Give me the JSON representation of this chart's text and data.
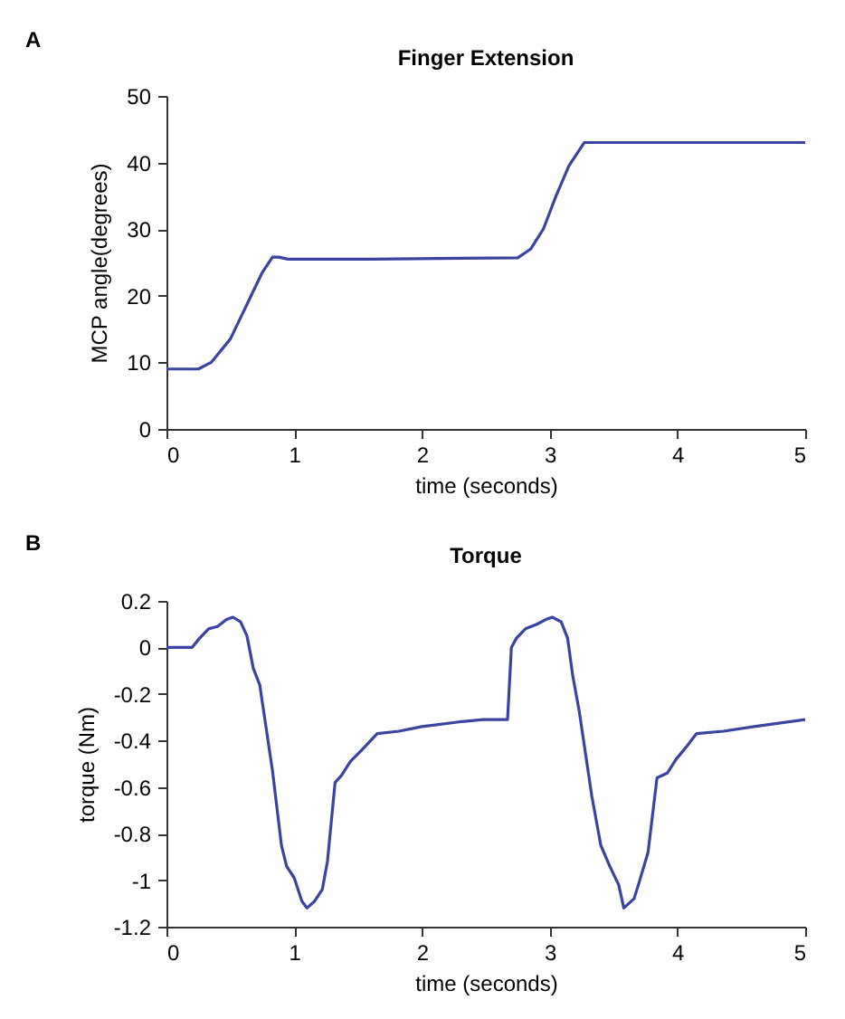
{
  "chart_data": [
    {
      "type": "line",
      "title": "Finger Extension",
      "xlabel": "time (seconds)",
      "ylabel": "MCP angle(degrees)",
      "annotations": [
        "A"
      ],
      "color": "#3a44a0",
      "x": [
        0,
        0.25,
        0.35,
        0.5,
        0.65,
        0.75,
        0.83,
        0.88,
        0.95,
        1.6,
        2.75,
        2.85,
        2.95,
        3.05,
        3.15,
        3.27,
        5
      ],
      "values": [
        9,
        9,
        10,
        13.5,
        19.5,
        23.5,
        25.8,
        25.8,
        25.5,
        25.5,
        25.7,
        27,
        30,
        35,
        39.5,
        43,
        43
      ],
      "xlim": [
        0,
        5
      ],
      "ylim": [
        0,
        50
      ],
      "xticks": [
        0,
        1,
        2,
        3,
        4,
        5
      ],
      "yticks": [
        0,
        10,
        20,
        30,
        40,
        50
      ]
    },
    {
      "type": "line",
      "title": "Torque",
      "xlabel": "time (seconds)",
      "ylabel": "torque (Nm)",
      "annotations": [
        "B"
      ],
      "color": "#3a44a0",
      "x": [
        0,
        0.2,
        0.26,
        0.33,
        0.4,
        0.47,
        0.52,
        0.58,
        0.63,
        0.68,
        0.73,
        0.83,
        0.9,
        0.94,
        1.0,
        1.06,
        1.1,
        1.16,
        1.22,
        1.26,
        1.32,
        1.37,
        1.44,
        1.53,
        1.65,
        1.82,
        2.0,
        2.29,
        2.48,
        2.67,
        2.7,
        2.74,
        2.81,
        2.9,
        2.97,
        3.02,
        3.09,
        3.14,
        3.18,
        3.23,
        3.33,
        3.4,
        3.47,
        3.54,
        3.58,
        3.66,
        3.7,
        3.77,
        3.84,
        3.92,
        3.99,
        4.08,
        4.15,
        4.36,
        4.6,
        5.0
      ],
      "values": [
        0,
        0,
        0.04,
        0.08,
        0.09,
        0.12,
        0.13,
        0.11,
        0.05,
        -0.09,
        -0.16,
        -0.53,
        -0.85,
        -0.94,
        -0.99,
        -1.09,
        -1.12,
        -1.09,
        -1.04,
        -0.92,
        -0.58,
        -0.55,
        -0.49,
        -0.44,
        -0.37,
        -0.36,
        -0.34,
        -0.32,
        -0.31,
        -0.31,
        0.0,
        0.04,
        0.08,
        0.1,
        0.12,
        0.13,
        0.11,
        0.04,
        -0.12,
        -0.27,
        -0.64,
        -0.85,
        -0.94,
        -1.02,
        -1.12,
        -1.08,
        -1.01,
        -0.88,
        -0.56,
        -0.54,
        -0.48,
        -0.42,
        -0.37,
        -0.36,
        -0.34,
        -0.31
      ],
      "xlim": [
        0,
        5
      ],
      "ylim": [
        -1.2,
        0.2
      ],
      "xticks": [
        0,
        1,
        2,
        3,
        4,
        5
      ],
      "yticks": [
        0.2,
        0,
        -0.2,
        -0.4,
        -0.6,
        -0.8,
        -1,
        -1.2
      ]
    }
  ]
}
